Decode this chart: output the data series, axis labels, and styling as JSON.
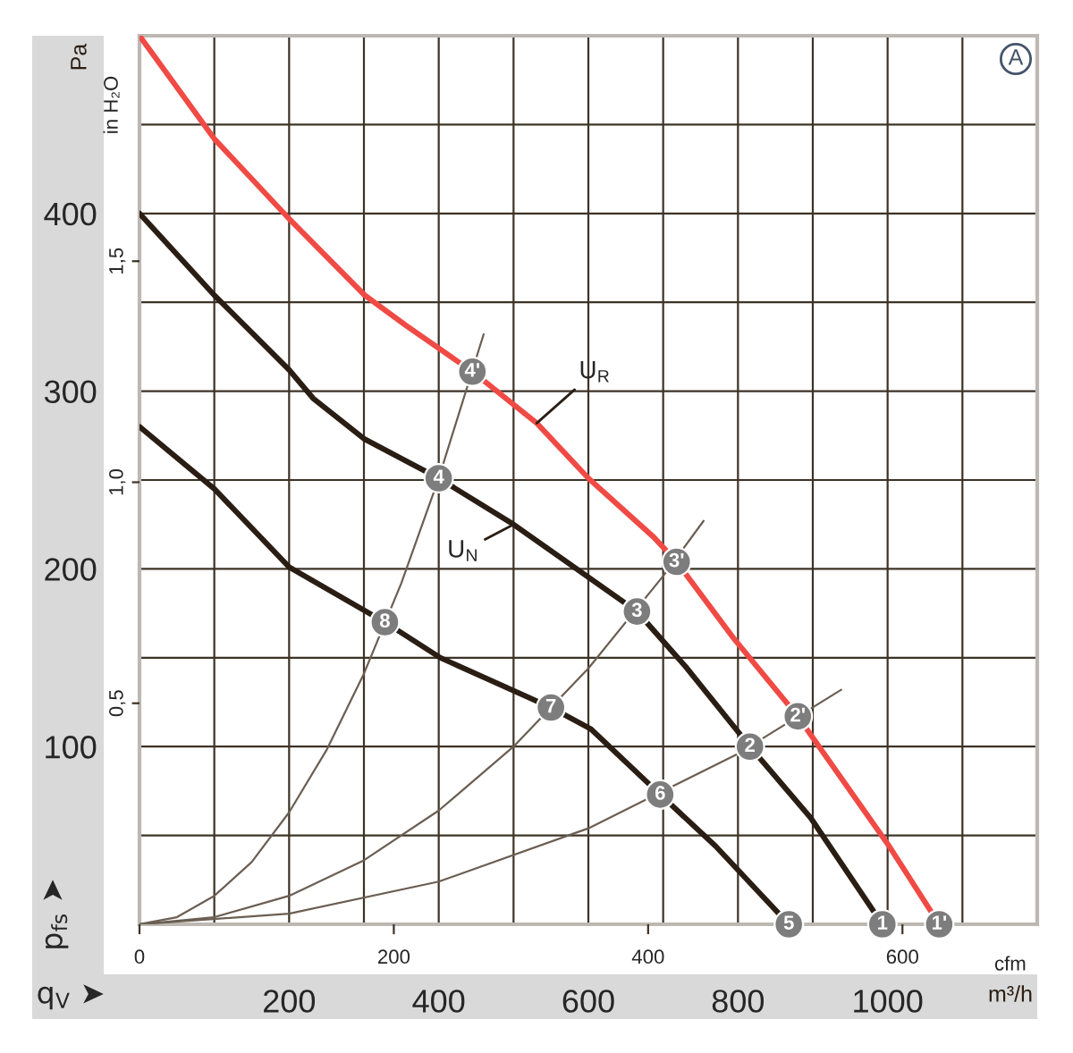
{
  "chart_data": {
    "type": "line",
    "xlabel": "q$_{V}$ ➤",
    "ylabel": "p$_{fs}$ ➤",
    "x2label": "cfm",
    "y2label": "in H₂O",
    "annotations": [
      "Pa",
      "m³/h",
      "A",
      {
        "text": "4'",
        "x": 445,
        "y": 311
      },
      {
        "text": "3'",
        "x": 718,
        "y": 204
      },
      {
        "text": "2'",
        "x": 880,
        "y": 117
      },
      {
        "text": "1'",
        "x": 1069,
        "y": 0
      },
      {
        "text": "4",
        "x": 400,
        "y": 251
      },
      {
        "text": "3",
        "x": 665,
        "y": 176
      },
      {
        "text": "2",
        "x": 816,
        "y": 100
      },
      {
        "text": "1",
        "x": 993,
        "y": 0
      },
      {
        "text": "8",
        "x": 328,
        "y": 170
      },
      {
        "text": "7",
        "x": 550,
        "y": 122
      },
      {
        "text": "6",
        "x": 696,
        "y": 73
      },
      {
        "text": "5",
        "x": 868,
        "y": 0
      }
    ],
    "series": [
      {
        "color": "#6b5e52",
        "x": [
          0,
          50,
          100,
          150,
          200,
          250,
          300,
          350,
          400,
          460
        ],
        "values": [
          0,
          4,
          16,
          35,
          63,
          98,
          141,
          192,
          251,
          332
        ]
      },
      {
        "color": "#6b5e52",
        "x": [
          0,
          100,
          200,
          300,
          400,
          500,
          600,
          700,
          754
        ],
        "values": [
          0,
          4,
          16,
          36,
          64,
          100,
          144,
          196,
          227
        ]
      },
      {
        "color": "#6b5e52",
        "x": [
          0,
          200,
          400,
          600,
          800,
          938
        ],
        "values": [
          0,
          6,
          24,
          54,
          96,
          132
        ]
      },
      {
        "name": "U$_{R}$",
        "color": "#f04a45",
        "x": [
          0,
          100,
          200,
          301,
          356,
          445,
          531,
          600,
          687,
          718,
          794,
          880,
          1002,
          1069
        ],
        "values": [
          500,
          442,
          397,
          354,
          337,
          311,
          282,
          251,
          218,
          204,
          161,
          117,
          44,
          0
        ]
      },
      {
        "name": "U$_{N}$",
        "color": "#2a1e14",
        "x": [
          0,
          100,
          200,
          232,
          301,
          400,
          500,
          665,
          730,
          816,
          897,
          993
        ],
        "values": [
          400,
          354,
          312,
          296,
          273,
          251,
          225,
          176,
          145,
          100,
          60,
          0
        ]
      },
      {
        "color": "#2a1e14",
        "x": [
          0,
          100,
          200,
          328,
          402,
          550,
          603,
          696,
          770,
          868
        ],
        "values": [
          280,
          245,
          201,
          170,
          150,
          122,
          110,
          73,
          44,
          0
        ]
      }
    ],
    "xlim": [
      0,
      1200
    ],
    "xticks": [
      {
        "value": 100,
        "label": null
      },
      200,
      {
        "value": 300,
        "label": null
      },
      400,
      {
        "value": 500,
        "label": null
      },
      600,
      {
        "value": 700,
        "label": null
      },
      800,
      {
        "value": 900,
        "label": null
      },
      1000,
      {
        "value": 1100,
        "label": null
      }
    ],
    "ylim": [
      0,
      500
    ],
    "yticks": [
      {
        "value": 50,
        "label": null
      },
      100,
      {
        "value": 150,
        "label": null
      },
      200,
      {
        "value": 250,
        "label": null
      },
      300,
      {
        "value": 350,
        "label": null
      },
      400,
      {
        "value": 450,
        "label": null
      }
    ],
    "x2lim": [
      0,
      706
    ],
    "x2ticks": [
      0,
      200,
      400,
      600
    ],
    "y2lim": [
      0,
      2.01
    ],
    "y2ticks": [
      {
        "value": 0.5,
        "label": "0,5"
      },
      {
        "value": 1.0,
        "label": "1,0"
      },
      {
        "value": 1.5,
        "label": "1,5"
      }
    ],
    "grid": true
  }
}
